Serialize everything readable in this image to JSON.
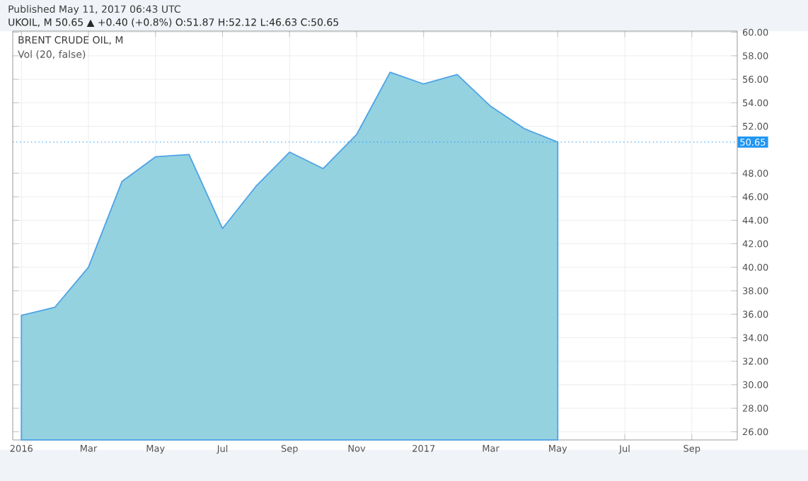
{
  "chart_data": {
    "type": "area",
    "title": "BRENT CRUDE OIL, M",
    "annotations": [
      "Published May 11, 2017 06:43 UTC",
      "UKOIL, M 50.65 ▲ +0.40 (+0.8%) O:51.87 H:52.12 L:46.63 C:50.65",
      "Vol (20, false)"
    ],
    "x": [
      "2016-01",
      "2016-02",
      "2016-03",
      "2016-04",
      "2016-05",
      "2016-06",
      "2016-07",
      "2016-08",
      "2016-09",
      "2016-10",
      "2016-11",
      "2016-12",
      "2017-01",
      "2017-02",
      "2017-03",
      "2017-04",
      "2017-05"
    ],
    "series": [
      {
        "color": "#4ea3e6",
        "values": [
          35.9,
          36.6,
          40.0,
          47.3,
          49.4,
          49.6,
          43.3,
          46.9,
          49.8,
          48.4,
          51.3,
          56.6,
          55.6,
          56.4,
          53.7,
          51.8,
          50.65
        ]
      }
    ],
    "xlim": [
      "2015-12-24",
      "2017-10-12"
    ],
    "xticks": [
      {
        "value": "2016-01",
        "label": "2016"
      },
      {
        "value": "2016-03",
        "label": "Mar"
      },
      {
        "value": "2016-05",
        "label": "May"
      },
      {
        "value": "2016-07",
        "label": "Jul"
      },
      {
        "value": "2016-09",
        "label": "Sep"
      },
      {
        "value": "2016-11",
        "label": "Nov"
      },
      {
        "value": "2017-01",
        "label": "2017"
      },
      {
        "value": "2017-03",
        "label": "Mar"
      },
      {
        "value": "2017-05",
        "label": "May"
      },
      {
        "value": "2017-07",
        "label": "Jul"
      },
      {
        "value": "2017-09",
        "label": "Sep"
      }
    ],
    "ylim": [
      25.3,
      60.1
    ],
    "yticks": [
      {
        "value": 26,
        "label": "26.00"
      },
      {
        "value": 28,
        "label": "28.00"
      },
      {
        "value": 30,
        "label": "30.00"
      },
      {
        "value": 32,
        "label": "32.00"
      },
      {
        "value": 34,
        "label": "34.00"
      },
      {
        "value": 36,
        "label": "36.00"
      },
      {
        "value": 38,
        "label": "38.00"
      },
      {
        "value": 40,
        "label": "40.00"
      },
      {
        "value": 42,
        "label": "42.00"
      },
      {
        "value": 44,
        "label": "44.00"
      },
      {
        "value": 46,
        "label": "46.00"
      },
      {
        "value": 48,
        "label": "48.00"
      },
      {
        "value": 52,
        "label": "52.00"
      },
      {
        "value": 54,
        "label": "54.00"
      },
      {
        "value": 56,
        "label": "56.00"
      },
      {
        "value": 58,
        "label": "58.00"
      },
      {
        "value": 60,
        "label": "60.00"
      }
    ],
    "ref_lines": [
      {
        "axis": "y",
        "value": 50.65,
        "label": "50.65",
        "color": "#2196f3",
        "line_style": "dotted"
      }
    ],
    "grid": true
  }
}
